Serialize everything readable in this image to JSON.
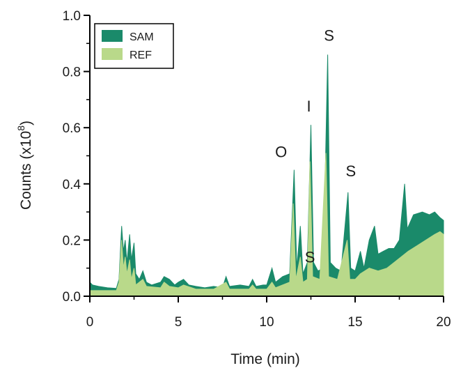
{
  "chart_data": {
    "type": "area",
    "title": "",
    "xlabel": "Time (min)",
    "ylabel_main": "Counts (x10",
    "ylabel_sup": "8",
    "ylabel_close": ")",
    "xlim": [
      0,
      20
    ],
    "ylim": [
      0,
      1.0
    ],
    "x_ticks": [
      0,
      5,
      10,
      15,
      20
    ],
    "x_tick_labels": [
      "0",
      "5",
      "10",
      "15",
      "20"
    ],
    "y_ticks": [
      0.0,
      0.2,
      0.4,
      0.6,
      0.8,
      1.0
    ],
    "y_tick_labels": [
      "0.0",
      "0.2",
      "0.4",
      "0.6",
      "0.8",
      "1.0"
    ],
    "grid": false,
    "legend_position": "top-left",
    "series": [
      {
        "name": "SAM",
        "color": "#1a8a6a",
        "points": [
          [
            0,
            0.05
          ],
          [
            0.15,
            0.04
          ],
          [
            0.5,
            0.035
          ],
          [
            1.0,
            0.03
          ],
          [
            1.5,
            0.028
          ],
          [
            1.65,
            0.06
          ],
          [
            1.8,
            0.25
          ],
          [
            1.9,
            0.16
          ],
          [
            2.0,
            0.2
          ],
          [
            2.1,
            0.12
          ],
          [
            2.25,
            0.22
          ],
          [
            2.35,
            0.13
          ],
          [
            2.5,
            0.19
          ],
          [
            2.6,
            0.08
          ],
          [
            2.8,
            0.06
          ],
          [
            3.0,
            0.09
          ],
          [
            3.2,
            0.05
          ],
          [
            3.5,
            0.04
          ],
          [
            4.0,
            0.05
          ],
          [
            4.2,
            0.07
          ],
          [
            4.5,
            0.06
          ],
          [
            4.8,
            0.04
          ],
          [
            5.0,
            0.05
          ],
          [
            5.3,
            0.06
          ],
          [
            5.6,
            0.04
          ],
          [
            6.0,
            0.035
          ],
          [
            6.5,
            0.03
          ],
          [
            7.0,
            0.035
          ],
          [
            7.5,
            0.03
          ],
          [
            7.7,
            0.07
          ],
          [
            7.9,
            0.035
          ],
          [
            8.5,
            0.04
          ],
          [
            9.0,
            0.035
          ],
          [
            9.2,
            0.06
          ],
          [
            9.4,
            0.035
          ],
          [
            9.8,
            0.04
          ],
          [
            10.0,
            0.04
          ],
          [
            10.3,
            0.1
          ],
          [
            10.5,
            0.05
          ],
          [
            10.9,
            0.07
          ],
          [
            11.3,
            0.08
          ],
          [
            11.55,
            0.45
          ],
          [
            11.7,
            0.1
          ],
          [
            11.9,
            0.25
          ],
          [
            12.05,
            0.08
          ],
          [
            12.3,
            0.12
          ],
          [
            12.5,
            0.61
          ],
          [
            12.65,
            0.12
          ],
          [
            12.9,
            0.09
          ],
          [
            13.2,
            0.1
          ],
          [
            13.45,
            0.86
          ],
          [
            13.6,
            0.12
          ],
          [
            13.9,
            0.1
          ],
          [
            14.2,
            0.09
          ],
          [
            14.6,
            0.37
          ],
          [
            14.75,
            0.1
          ],
          [
            15.0,
            0.09
          ],
          [
            15.3,
            0.16
          ],
          [
            15.5,
            0.1
          ],
          [
            15.8,
            0.2
          ],
          [
            16.1,
            0.25
          ],
          [
            16.3,
            0.15
          ],
          [
            16.6,
            0.16
          ],
          [
            16.9,
            0.17
          ],
          [
            17.2,
            0.17
          ],
          [
            17.5,
            0.2
          ],
          [
            17.8,
            0.4
          ],
          [
            17.95,
            0.24
          ],
          [
            18.3,
            0.29
          ],
          [
            18.8,
            0.3
          ],
          [
            19.2,
            0.29
          ],
          [
            19.5,
            0.3
          ],
          [
            19.8,
            0.28
          ],
          [
            20.0,
            0.27
          ]
        ]
      },
      {
        "name": "REF",
        "color": "#b9d98a",
        "points": [
          [
            0,
            0.02
          ],
          [
            0.5,
            0.02
          ],
          [
            1.0,
            0.02
          ],
          [
            1.5,
            0.02
          ],
          [
            1.65,
            0.05
          ],
          [
            1.8,
            0.2
          ],
          [
            1.9,
            0.1
          ],
          [
            2.0,
            0.14
          ],
          [
            2.1,
            0.08
          ],
          [
            2.25,
            0.13
          ],
          [
            2.35,
            0.06
          ],
          [
            2.5,
            0.1
          ],
          [
            2.6,
            0.04
          ],
          [
            3.0,
            0.06
          ],
          [
            3.2,
            0.035
          ],
          [
            4.0,
            0.03
          ],
          [
            4.2,
            0.05
          ],
          [
            4.5,
            0.035
          ],
          [
            5.0,
            0.03
          ],
          [
            5.3,
            0.04
          ],
          [
            6.0,
            0.025
          ],
          [
            7.0,
            0.025
          ],
          [
            7.7,
            0.05
          ],
          [
            7.9,
            0.025
          ],
          [
            9.0,
            0.025
          ],
          [
            9.2,
            0.04
          ],
          [
            9.4,
            0.025
          ],
          [
            10.0,
            0.025
          ],
          [
            10.3,
            0.05
          ],
          [
            10.5,
            0.03
          ],
          [
            11.3,
            0.05
          ],
          [
            11.5,
            0.33
          ],
          [
            11.65,
            0.06
          ],
          [
            11.9,
            0.14
          ],
          [
            12.05,
            0.05
          ],
          [
            12.3,
            0.06
          ],
          [
            12.45,
            0.48
          ],
          [
            12.6,
            0.07
          ],
          [
            13.0,
            0.06
          ],
          [
            13.35,
            0.51
          ],
          [
            13.5,
            0.07
          ],
          [
            14.0,
            0.06
          ],
          [
            14.55,
            0.2
          ],
          [
            14.7,
            0.06
          ],
          [
            15.0,
            0.06
          ],
          [
            15.3,
            0.08
          ],
          [
            15.8,
            0.1
          ],
          [
            16.3,
            0.09
          ],
          [
            16.8,
            0.1
          ],
          [
            17.2,
            0.12
          ],
          [
            17.6,
            0.14
          ],
          [
            18.0,
            0.16
          ],
          [
            18.5,
            0.18
          ],
          [
            19.0,
            0.2
          ],
          [
            19.5,
            0.22
          ],
          [
            19.8,
            0.23
          ],
          [
            20.0,
            0.22
          ]
        ]
      }
    ],
    "annotations": [
      {
        "text": "S",
        "x": 13.45,
        "y": 0.86
      },
      {
        "text": "I",
        "x": 12.5,
        "y": 0.61
      },
      {
        "text": "O",
        "x": 11.6,
        "y": 0.45
      },
      {
        "text": "S",
        "x": 12.05,
        "y": 0.25
      },
      {
        "text": "S",
        "x": 14.6,
        "y": 0.37
      }
    ]
  }
}
